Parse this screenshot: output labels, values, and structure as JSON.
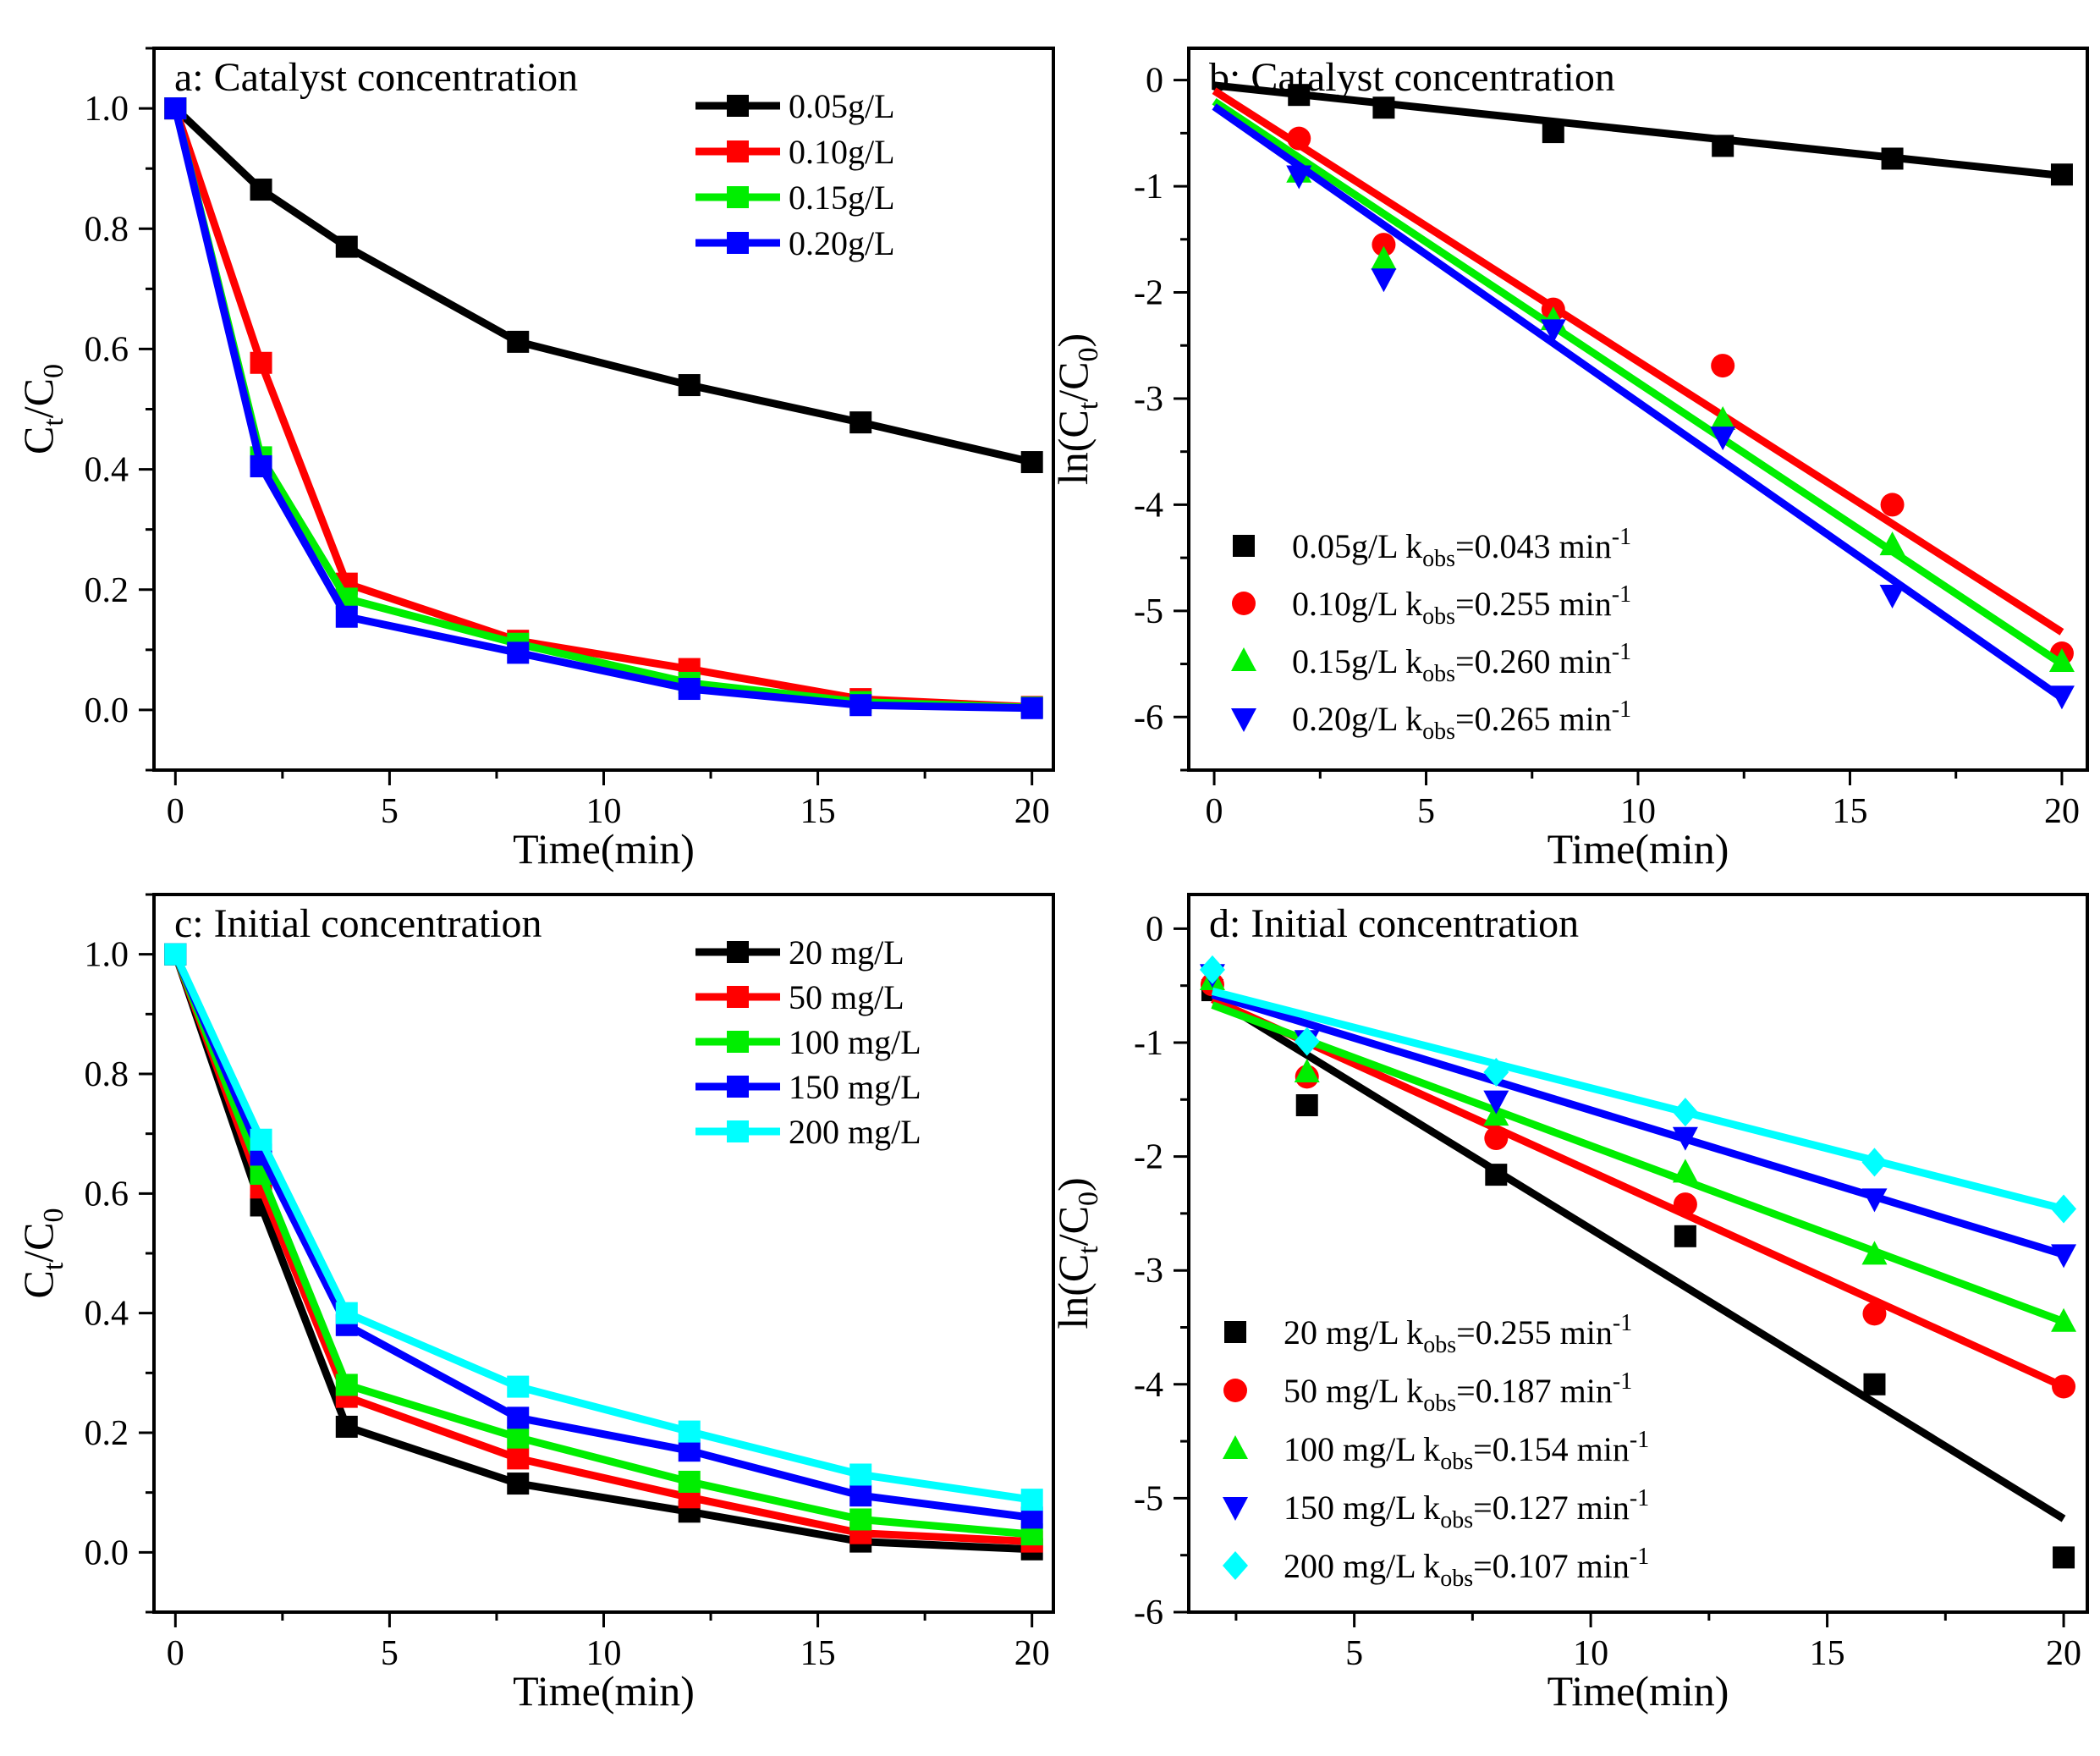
{
  "figure": {
    "panel_count": 4
  },
  "chart_data": [
    {
      "id": "a",
      "type": "line",
      "title": "a: Catalyst concentration",
      "xlabel": "Time(min)",
      "ylabel": {
        "main": "C",
        "sub1": "t",
        "mid": "/C",
        "sub2": "0"
      },
      "xlim": [
        -0.5,
        20.5
      ],
      "ylim": [
        -0.1,
        1.1
      ],
      "xticks": [
        0,
        5,
        10,
        15,
        20
      ],
      "yticks": [
        0.0,
        0.2,
        0.4,
        0.6,
        0.8,
        1.0
      ],
      "ytick_labels": [
        "0.0",
        "0.2",
        "0.4",
        "0.6",
        "0.8",
        "1.0"
      ],
      "legend_position": "top-right",
      "x": [
        0,
        2,
        4,
        8,
        12,
        16,
        20
      ],
      "series": [
        {
          "name": "0.05g/L",
          "color": "#000000",
          "marker": "square",
          "values": [
            1.0,
            0.865,
            0.77,
            0.612,
            0.54,
            0.478,
            0.412
          ]
        },
        {
          "name": "0.10g/L",
          "color": "#ff0000",
          "marker": "square",
          "values": [
            1.0,
            0.577,
            0.21,
            0.115,
            0.068,
            0.018,
            0.005
          ]
        },
        {
          "name": "0.15g/L",
          "color": "#00ee00",
          "marker": "square",
          "values": [
            1.0,
            0.42,
            0.185,
            0.11,
            0.045,
            0.013,
            0.004
          ]
        },
        {
          "name": "0.20g/L",
          "color": "#0000ff",
          "marker": "square",
          "values": [
            1.0,
            0.405,
            0.155,
            0.095,
            0.035,
            0.008,
            0.003
          ]
        }
      ]
    },
    {
      "id": "b",
      "type": "scatter",
      "title": "b: Catalyst concentration",
      "xlabel": "Time(min)",
      "ylabel": {
        "main": "ln(C",
        "sub1": "t",
        "mid": "/C",
        "sub2": "0",
        "end": ")"
      },
      "xlim": [
        -0.6,
        20.6
      ],
      "ylim": [
        -6.5,
        0.3
      ],
      "xticks": [
        0,
        5,
        10,
        15,
        20
      ],
      "yticks": [
        0,
        -1,
        -2,
        -3,
        -4,
        -5,
        -6
      ],
      "ytick_labels": [
        "0",
        "-1",
        "-2",
        "-3",
        "-4",
        "-5",
        "-6"
      ],
      "legend_position": "bottom-left",
      "x": [
        2,
        4,
        8,
        12,
        16,
        20
      ],
      "series": [
        {
          "name": "0.05g/L",
          "color": "#000000",
          "marker": "square",
          "values": [
            -0.14,
            -0.26,
            -0.49,
            -0.62,
            -0.74,
            -0.89
          ],
          "fit": [
            [
              0,
              -0.05
            ],
            [
              20,
              -0.9
            ]
          ],
          "label": {
            "prefix": "0.05g/L k",
            "sub": "obs",
            "rate": "=0.043 min",
            "sup": "-1"
          }
        },
        {
          "name": "0.10g/L",
          "color": "#ff0000",
          "marker": "circle",
          "values": [
            -0.55,
            -1.55,
            -2.16,
            -2.69,
            -4.0,
            -5.4
          ],
          "fit": [
            [
              0,
              -0.1
            ],
            [
              20,
              -5.2
            ]
          ],
          "label": {
            "prefix": "0.10g/L k",
            "sub": "obs",
            "rate": "=0.255 min",
            "sup": "-1"
          }
        },
        {
          "name": "0.15g/L",
          "color": "#00ee00",
          "marker": "triangle-up",
          "values": [
            -0.87,
            -1.69,
            -2.26,
            -3.2,
            -4.38,
            -5.48
          ],
          "fit": [
            [
              0,
              -0.2
            ],
            [
              20,
              -5.5
            ]
          ],
          "label": {
            "prefix": "0.15g/L k",
            "sub": "obs",
            "rate": "=0.260 min",
            "sup": "-1"
          }
        },
        {
          "name": "0.20g/L",
          "color": "#0000ff",
          "marker": "triangle-down",
          "values": [
            -0.9,
            -1.87,
            -2.35,
            -3.36,
            -4.85,
            -5.8
          ],
          "fit": [
            [
              0,
              -0.25
            ],
            [
              20,
              -5.82
            ]
          ],
          "label": {
            "prefix": "0.20g/L k",
            "sub": "obs",
            "rate": "=0.265 min",
            "sup": "-1"
          }
        }
      ]
    },
    {
      "id": "c",
      "type": "line",
      "title": "c: Initial concentration",
      "xlabel": "Time(min)",
      "ylabel": {
        "main": "C",
        "sub1": "t",
        "mid": "/C",
        "sub2": "0"
      },
      "xlim": [
        -0.5,
        20.5
      ],
      "ylim": [
        -0.1,
        1.1
      ],
      "xticks": [
        0,
        5,
        10,
        15,
        20
      ],
      "yticks": [
        0.0,
        0.2,
        0.4,
        0.6,
        0.8,
        1.0
      ],
      "ytick_labels": [
        "0.0",
        "0.2",
        "0.4",
        "0.6",
        "0.8",
        "1.0"
      ],
      "legend_position": "top-right",
      "x": [
        0,
        2,
        4,
        8,
        12,
        16,
        20
      ],
      "series": [
        {
          "name": "20 mg/L",
          "color": "#000000",
          "marker": "square",
          "values": [
            1.0,
            0.58,
            0.21,
            0.115,
            0.068,
            0.018,
            0.005
          ]
        },
        {
          "name": "50 mg/L",
          "color": "#ff0000",
          "marker": "square",
          "values": [
            1.0,
            0.61,
            0.26,
            0.157,
            0.092,
            0.032,
            0.018
          ]
        },
        {
          "name": "100 mg/L",
          "color": "#00ee00",
          "marker": "square",
          "values": [
            1.0,
            0.633,
            0.28,
            0.192,
            0.118,
            0.055,
            0.03
          ]
        },
        {
          "name": "150 mg/L",
          "color": "#0000ff",
          "marker": "square",
          "values": [
            1.0,
            0.665,
            0.38,
            0.225,
            0.17,
            0.095,
            0.058
          ]
        },
        {
          "name": "200 mg/L",
          "color": "#00ffff",
          "marker": "square",
          "values": [
            1.0,
            0.69,
            0.4,
            0.277,
            0.202,
            0.13,
            0.088
          ]
        }
      ]
    },
    {
      "id": "d",
      "type": "scatter",
      "title": "d: Initial concentration",
      "xlabel": "Time(min)",
      "ylabel": {
        "main": "ln(C",
        "sub1": "t",
        "mid": "/C",
        "sub2": "0",
        "end": ")"
      },
      "xlim": [
        1.5,
        20.5
      ],
      "ylim": [
        -6.0,
        0.3
      ],
      "xticks": [
        5,
        10,
        15,
        20
      ],
      "yticks": [
        0,
        -1,
        -2,
        -3,
        -4,
        -5,
        -6
      ],
      "ytick_labels": [
        "0",
        "-1",
        "-2",
        "-3",
        "-4",
        "-5",
        "-6"
      ],
      "legend_position": "bottom-left",
      "x": [
        2,
        4,
        8,
        12,
        16,
        20
      ],
      "series": [
        {
          "name": "20 mg/L",
          "color": "#000000",
          "marker": "square",
          "values": [
            -0.54,
            -1.55,
            -2.16,
            -2.7,
            -4.0,
            -5.52
          ],
          "fit": [
            [
              2,
              -0.6
            ],
            [
              20,
              -5.18
            ]
          ],
          "label": {
            "prefix": "20 mg/L k",
            "sub": "obs",
            "rate": "=0.255 min",
            "sup": "-1"
          }
        },
        {
          "name": "50 mg/L",
          "color": "#ff0000",
          "marker": "circle",
          "values": [
            -0.49,
            -1.3,
            -1.84,
            -2.42,
            -3.38,
            -4.02
          ],
          "fit": [
            [
              2,
              -0.62
            ],
            [
              20,
              -4.02
            ]
          ],
          "label": {
            "prefix": "50 mg/L k",
            "sub": "obs",
            "rate": "=0.187 min",
            "sup": "-1"
          }
        },
        {
          "name": "100 mg/L",
          "color": "#00ee00",
          "marker": "triangle-up",
          "values": [
            -0.45,
            -1.26,
            -1.64,
            -2.14,
            -2.86,
            -3.45
          ],
          "fit": [
            [
              2,
              -0.67
            ],
            [
              20,
              -3.45
            ]
          ],
          "label": {
            "prefix": "100 mg/L k",
            "sub": "obs",
            "rate": "=0.154 min",
            "sup": "-1"
          }
        },
        {
          "name": "150 mg/L",
          "color": "#0000ff",
          "marker": "triangle-down",
          "values": [
            -0.4,
            -0.98,
            -1.51,
            -1.83,
            -2.37,
            -2.86
          ],
          "fit": [
            [
              2,
              -0.58
            ],
            [
              20,
              -2.86
            ]
          ],
          "label": {
            "prefix": "150 mg/L k",
            "sub": "obs",
            "rate": "=0.127 min",
            "sup": "-1"
          }
        },
        {
          "name": "200 mg/L",
          "color": "#00ffff",
          "marker": "diamond",
          "values": [
            -0.36,
            -0.99,
            -1.26,
            -1.61,
            -2.05,
            -2.46
          ],
          "fit": [
            [
              2,
              -0.55
            ],
            [
              20,
              -2.46
            ]
          ],
          "label": {
            "prefix": "200 mg/L k",
            "sub": "obs",
            "rate": "=0.107 min",
            "sup": "-1"
          }
        }
      ]
    }
  ]
}
